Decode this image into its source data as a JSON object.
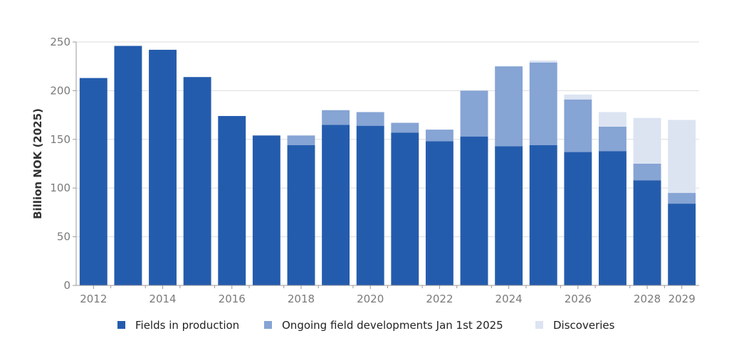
{
  "chart_data": {
    "type": "bar",
    "stacked": true,
    "title": "",
    "xlabel": "",
    "ylabel": "Billion NOK (2025)",
    "ylim": [
      0,
      250
    ],
    "yticks": [
      0,
      50,
      100,
      150,
      200,
      250
    ],
    "grid": true,
    "legend_position": "bottom",
    "categories": [
      "2012",
      "2013",
      "2014",
      "2015",
      "2016",
      "2017",
      "2018",
      "2019",
      "2020",
      "2021",
      "2022",
      "2023",
      "2024",
      "2025",
      "2026",
      "2027",
      "2028",
      "2029"
    ],
    "x_tick_labels": [
      "2012",
      "2014",
      "2016",
      "2018",
      "2020",
      "2022",
      "2024",
      "2026",
      "2028",
      "2029"
    ],
    "series": [
      {
        "name": "Fields in production",
        "color": "#245CAD",
        "values": [
          213,
          246,
          242,
          214,
          174,
          154,
          144,
          165,
          164,
          157,
          148,
          153,
          143,
          144,
          137,
          138,
          108,
          84
        ]
      },
      {
        "name": "Ongoing field developments Jan 1st 2025",
        "color": "#86A4D4",
        "values": [
          0,
          0,
          0,
          0,
          0,
          0,
          10,
          15,
          14,
          10,
          12,
          47,
          82,
          85,
          54,
          25,
          17,
          11
        ]
      },
      {
        "name": "Discoveries",
        "color": "#DCE4F2",
        "values": [
          0,
          0,
          0,
          0,
          0,
          0,
          0,
          0,
          0,
          0,
          0,
          0,
          0,
          2,
          5,
          15,
          47,
          75
        ]
      }
    ]
  }
}
